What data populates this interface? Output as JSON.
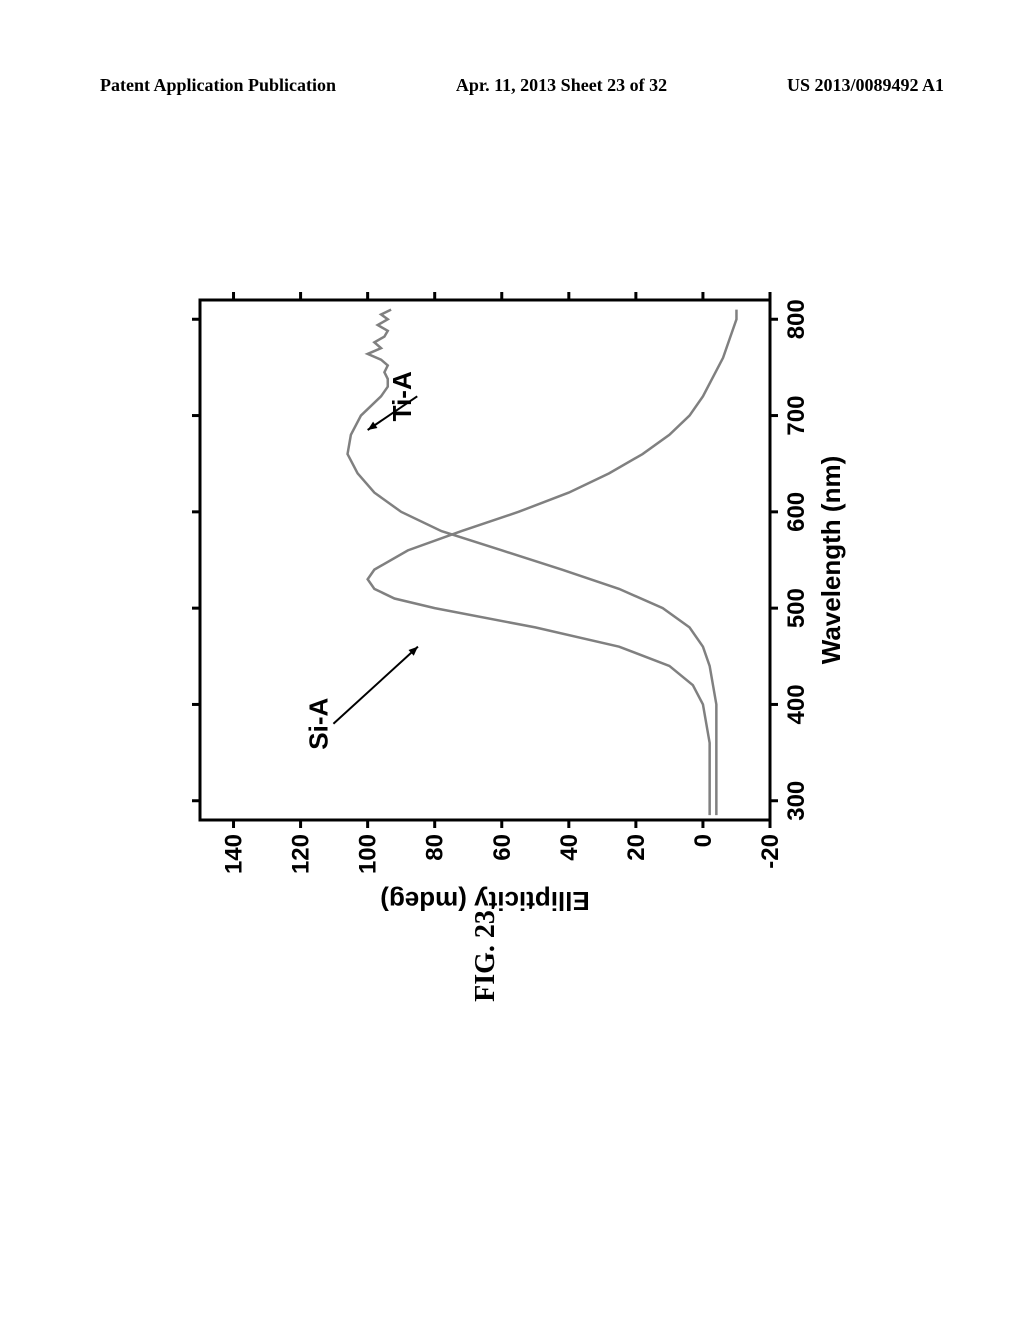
{
  "header": {
    "left": "Patent Application Publication",
    "center": "Apr. 11, 2013  Sheet 23 of 32",
    "right": "US 2013/0089492 A1"
  },
  "chart": {
    "type": "line",
    "xlabel": "Wavelength (nm)",
    "ylabel": "Ellipticity (mdeg)",
    "xlim": [
      280,
      820
    ],
    "ylim": [
      -20,
      150
    ],
    "xticks": [
      300,
      400,
      500,
      600,
      700,
      800
    ],
    "yticks": [
      -20,
      0,
      20,
      40,
      60,
      80,
      100,
      120,
      140
    ],
    "axis_color": "#000000",
    "axis_width": 3,
    "tick_length": 8,
    "tick_fontsize": 24,
    "label_fontsize": 26,
    "label_fontweight": "bold",
    "line_color": "#808080",
    "line_width": 2.5,
    "series": {
      "SiA": {
        "label": "Si-A",
        "label_x": 380,
        "label_y": 112,
        "arrow_to_x": 460,
        "arrow_to_y": 85,
        "data": [
          [
            285,
            -2
          ],
          [
            300,
            -2
          ],
          [
            320,
            -2
          ],
          [
            340,
            -2
          ],
          [
            360,
            -2
          ],
          [
            380,
            -1
          ],
          [
            400,
            0
          ],
          [
            420,
            3
          ],
          [
            440,
            10
          ],
          [
            460,
            25
          ],
          [
            480,
            50
          ],
          [
            500,
            80
          ],
          [
            510,
            92
          ],
          [
            520,
            98
          ],
          [
            530,
            100
          ],
          [
            540,
            98
          ],
          [
            560,
            88
          ],
          [
            580,
            72
          ],
          [
            600,
            55
          ],
          [
            620,
            40
          ],
          [
            640,
            28
          ],
          [
            660,
            18
          ],
          [
            680,
            10
          ],
          [
            700,
            4
          ],
          [
            720,
            0
          ],
          [
            740,
            -3
          ],
          [
            760,
            -6
          ],
          [
            780,
            -8
          ],
          [
            800,
            -10
          ],
          [
            810,
            -10
          ]
        ]
      },
      "TiA": {
        "label": "Ti-A",
        "label_x": 720,
        "label_y": 87,
        "arrow_to_x": 685,
        "arrow_to_y": 100,
        "data": [
          [
            285,
            -4
          ],
          [
            300,
            -4
          ],
          [
            320,
            -4
          ],
          [
            340,
            -4
          ],
          [
            360,
            -4
          ],
          [
            380,
            -4
          ],
          [
            400,
            -4
          ],
          [
            420,
            -3
          ],
          [
            440,
            -2
          ],
          [
            460,
            0
          ],
          [
            480,
            4
          ],
          [
            500,
            12
          ],
          [
            520,
            25
          ],
          [
            540,
            42
          ],
          [
            560,
            60
          ],
          [
            580,
            78
          ],
          [
            600,
            90
          ],
          [
            620,
            98
          ],
          [
            640,
            103
          ],
          [
            660,
            106
          ],
          [
            680,
            105
          ],
          [
            700,
            102
          ],
          [
            720,
            96
          ],
          [
            730,
            94
          ],
          [
            738,
            94
          ],
          [
            745,
            95
          ],
          [
            752,
            94
          ],
          [
            758,
            96
          ],
          [
            764,
            100
          ],
          [
            770,
            96
          ],
          [
            776,
            98
          ],
          [
            782,
            95
          ],
          [
            788,
            94
          ],
          [
            794,
            97
          ],
          [
            800,
            94
          ],
          [
            805,
            96
          ],
          [
            810,
            93
          ]
        ]
      }
    }
  },
  "figure_caption": "FIG. 23"
}
